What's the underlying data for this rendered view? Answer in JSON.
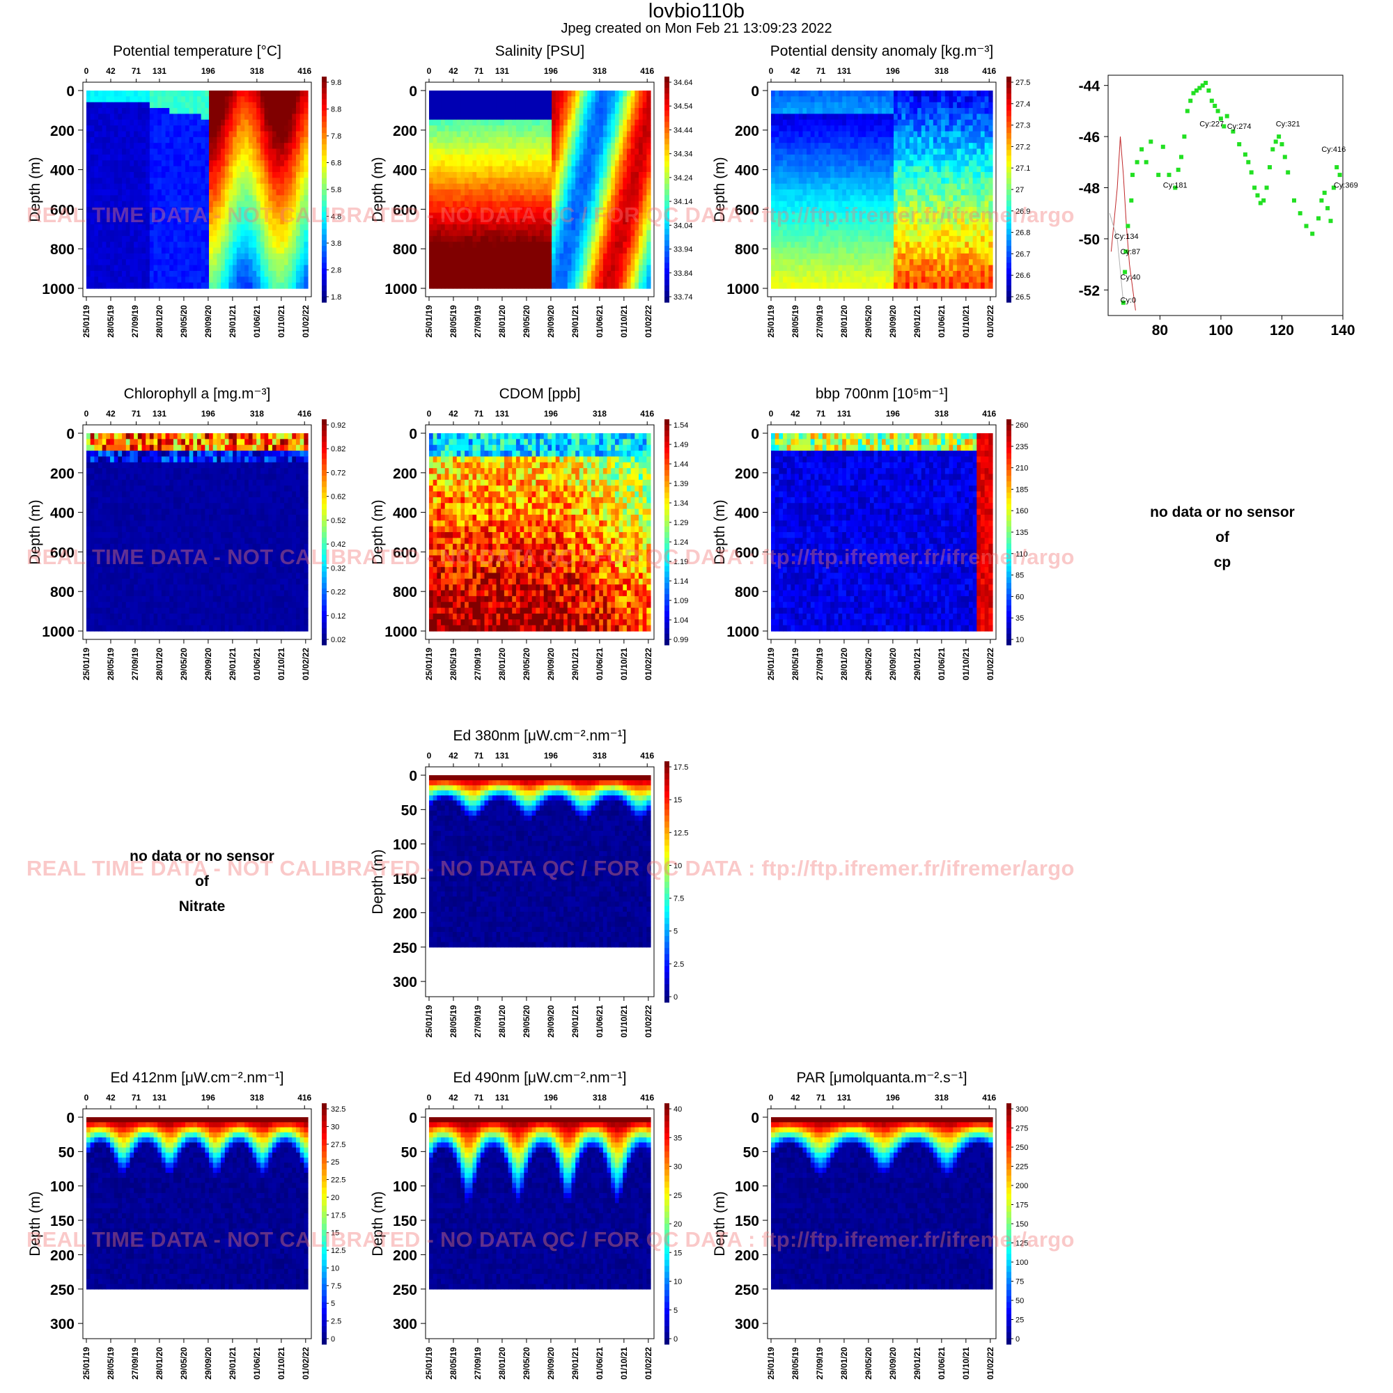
{
  "page": {
    "title": "lovbio110b",
    "subtitle": "Jpeg created on  Mon Feb 21 13:09:23 2022",
    "watermark": "REAL TIME DATA - NOT CALIBRATED - NO DATA QC  /  FOR QC DATA : ftp://ftp.ifremer.fr/ifremer/argo"
  },
  "nodata_labels": {
    "nitrate": [
      "no data or no sensor",
      "of",
      "Nitrate"
    ],
    "cp": [
      "no data or no sensor",
      "of",
      "cp"
    ]
  },
  "chart_data": [
    {
      "type": "heatmap",
      "id": "temp",
      "title": "Potential temperature [°C]",
      "ylabel": "Depth (m)",
      "ylim": [
        1000,
        0
      ],
      "yticks": [
        0,
        200,
        400,
        600,
        800,
        1000
      ],
      "cycle_ticks": [
        "0",
        "42",
        "71",
        "131",
        "196",
        "318",
        "416"
      ],
      "date_ticks": [
        "25/01/19",
        "28/05/19",
        "27/09/19",
        "28/01/20",
        "29/05/20",
        "29/09/20",
        "29/01/21",
        "01/06/21",
        "01/10/21",
        "01/02/22"
      ],
      "colorbar": {
        "min": 1.8,
        "max": 9.8,
        "ticks": [
          "9.8",
          "8.8",
          "7.8",
          "6.8",
          "5.8",
          "4.8",
          "3.8",
          "2.8",
          "1.8"
        ]
      }
    },
    {
      "type": "heatmap",
      "id": "psal",
      "title": "Salinity [PSU]",
      "ylabel": "Depth (m)",
      "ylim": [
        1000,
        0
      ],
      "yticks": [
        0,
        200,
        400,
        600,
        800,
        1000
      ],
      "cycle_ticks": [
        "0",
        "42",
        "71",
        "131",
        "196",
        "318",
        "416"
      ],
      "date_ticks": [
        "25/01/19",
        "28/05/19",
        "27/09/19",
        "28/01/20",
        "29/05/20",
        "29/09/20",
        "29/01/21",
        "01/06/21",
        "01/10/21",
        "01/02/22"
      ],
      "colorbar": {
        "min": 33.74,
        "max": 34.64,
        "ticks": [
          "34.64",
          "34.54",
          "34.44",
          "34.34",
          "34.24",
          "34.14",
          "34.04",
          "33.94",
          "33.84",
          "33.74"
        ]
      }
    },
    {
      "type": "heatmap",
      "id": "sigma",
      "title": "Potential density anomaly [kg.m⁻³]",
      "ylabel": "Depth (m)",
      "ylim": [
        1000,
        0
      ],
      "yticks": [
        0,
        200,
        400,
        600,
        800,
        1000
      ],
      "cycle_ticks": [
        "0",
        "42",
        "71",
        "131",
        "196",
        "318",
        "416"
      ],
      "date_ticks": [
        "25/01/19",
        "28/05/19",
        "27/09/19",
        "28/01/20",
        "29/05/20",
        "29/09/20",
        "29/01/21",
        "01/06/21",
        "01/10/21",
        "01/02/22"
      ],
      "colorbar": {
        "min": 26.5,
        "max": 27.5,
        "ticks": [
          "27.5",
          "27.4",
          "27.3",
          "27.2",
          "27.1",
          "27",
          "26.9",
          "26.8",
          "26.7",
          "26.6",
          "26.5"
        ]
      }
    },
    {
      "type": "heatmap",
      "id": "chla",
      "title": "Chlorophyll a [mg.m⁻³]",
      "ylabel": "Depth (m)",
      "ylim": [
        1000,
        0
      ],
      "yticks": [
        0,
        200,
        400,
        600,
        800,
        1000
      ],
      "cycle_ticks": [
        "0",
        "42",
        "71",
        "131",
        "196",
        "318",
        "416"
      ],
      "date_ticks": [
        "25/01/19",
        "28/05/19",
        "27/09/19",
        "28/01/20",
        "29/05/20",
        "29/09/20",
        "29/01/21",
        "01/06/21",
        "01/10/21",
        "01/02/22"
      ],
      "colorbar": {
        "min": 0.02,
        "max": 0.92,
        "ticks": [
          "0.92",
          "0.82",
          "0.72",
          "0.62",
          "0.52",
          "0.42",
          "0.32",
          "0.22",
          "0.12",
          "0.02"
        ]
      }
    },
    {
      "type": "heatmap",
      "id": "cdom",
      "title": "CDOM  [ppb]",
      "ylabel": "Depth (m)",
      "ylim": [
        1000,
        0
      ],
      "yticks": [
        0,
        200,
        400,
        600,
        800,
        1000
      ],
      "cycle_ticks": [
        "0",
        "42",
        "71",
        "131",
        "196",
        "318",
        "416"
      ],
      "date_ticks": [
        "25/01/19",
        "28/05/19",
        "27/09/19",
        "28/01/20",
        "29/05/20",
        "29/09/20",
        "29/01/21",
        "01/06/21",
        "01/10/21",
        "01/02/22"
      ],
      "colorbar": {
        "min": 0.99,
        "max": 1.54,
        "ticks": [
          "1.54",
          "1.49",
          "1.44",
          "1.39",
          "1.34",
          "1.29",
          "1.24",
          "1.19",
          "1.14",
          "1.09",
          "1.04",
          "0.99"
        ]
      }
    },
    {
      "type": "heatmap",
      "id": "bbp",
      "title": "bbp 700nm [10⁵m⁻¹]",
      "ylabel": "Depth (m)",
      "ylim": [
        1000,
        0
      ],
      "yticks": [
        0,
        200,
        400,
        600,
        800,
        1000
      ],
      "cycle_ticks": [
        "0",
        "42",
        "71",
        "131",
        "196",
        "318",
        "416"
      ],
      "date_ticks": [
        "25/01/19",
        "28/05/19",
        "27/09/19",
        "28/01/20",
        "29/05/20",
        "29/09/20",
        "29/01/21",
        "01/06/21",
        "01/10/21",
        "01/02/22"
      ],
      "colorbar": {
        "min": 10,
        "max": 260,
        "ticks": [
          "260",
          "235",
          "210",
          "185",
          "160",
          "135",
          "110",
          "85",
          "60",
          "35",
          "10"
        ]
      }
    },
    {
      "type": "heatmap",
      "id": "ed380",
      "title": "Ed 380nm [μW.cm⁻².nm⁻¹]",
      "ylabel": "Depth (m)",
      "ylim": [
        310,
        0
      ],
      "yticks": [
        0,
        50,
        100,
        150,
        200,
        250,
        300
      ],
      "cycle_ticks": [
        "0",
        "42",
        "71",
        "131",
        "196",
        "318",
        "416"
      ],
      "date_ticks": [
        "25/01/19",
        "28/05/19",
        "27/09/19",
        "28/01/20",
        "29/05/20",
        "29/09/20",
        "29/01/21",
        "01/06/21",
        "01/10/21",
        "01/02/22"
      ],
      "colorbar": {
        "min": 0,
        "max": 17.5,
        "ticks": [
          "17.5",
          "15",
          "12.5",
          "10",
          "7.5",
          "5",
          "2.5",
          "0"
        ]
      }
    },
    {
      "type": "heatmap",
      "id": "ed412",
      "title": "Ed 412nm [μW.cm⁻².nm⁻¹]",
      "ylabel": "Depth (m)",
      "ylim": [
        310,
        0
      ],
      "yticks": [
        0,
        50,
        100,
        150,
        200,
        250,
        300
      ],
      "cycle_ticks": [
        "0",
        "42",
        "71",
        "131",
        "196",
        "318",
        "416"
      ],
      "date_ticks": [
        "25/01/19",
        "28/05/19",
        "27/09/19",
        "28/01/20",
        "29/05/20",
        "29/09/20",
        "29/01/21",
        "01/06/21",
        "01/10/21",
        "01/02/22"
      ],
      "colorbar": {
        "min": 0,
        "max": 32.5,
        "ticks": [
          "32.5",
          "30",
          "27.5",
          "25",
          "22.5",
          "20",
          "17.5",
          "15",
          "12.5",
          "10",
          "7.5",
          "5",
          "2.5",
          "0"
        ]
      }
    },
    {
      "type": "heatmap",
      "id": "ed490",
      "title": "Ed 490nm [μW.cm⁻².nm⁻¹]",
      "ylabel": "Depth (m)",
      "ylim": [
        310,
        0
      ],
      "yticks": [
        0,
        50,
        100,
        150,
        200,
        250,
        300
      ],
      "cycle_ticks": [
        "0",
        "42",
        "71",
        "131",
        "196",
        "318",
        "416"
      ],
      "date_ticks": [
        "25/01/19",
        "28/05/19",
        "27/09/19",
        "28/01/20",
        "29/05/20",
        "29/09/20",
        "29/01/21",
        "01/06/21",
        "01/10/21",
        "01/02/22"
      ],
      "colorbar": {
        "min": 0,
        "max": 40,
        "ticks": [
          "40",
          "35",
          "30",
          "25",
          "20",
          "15",
          "10",
          "5",
          "0"
        ]
      }
    },
    {
      "type": "heatmap",
      "id": "par",
      "title": "PAR [μmolquanta.m⁻².s⁻¹]",
      "ylabel": "Depth (m)",
      "ylim": [
        310,
        0
      ],
      "yticks": [
        0,
        50,
        100,
        150,
        200,
        250,
        300
      ],
      "cycle_ticks": [
        "0",
        "42",
        "71",
        "131",
        "196",
        "318",
        "416"
      ],
      "date_ticks": [
        "25/01/19",
        "28/05/19",
        "27/09/19",
        "28/01/20",
        "29/05/20",
        "29/09/20",
        "29/01/21",
        "01/06/21",
        "01/10/21",
        "01/02/22"
      ],
      "colorbar": {
        "min": 0,
        "max": 300,
        "ticks": [
          "300",
          "275",
          "250",
          "225",
          "200",
          "175",
          "150",
          "125",
          "100",
          "75",
          "50",
          "25",
          "0"
        ]
      }
    },
    {
      "type": "scatter",
      "id": "map",
      "title": "",
      "xlim": [
        63,
        140
      ],
      "ylim": [
        -53,
        -43.6
      ],
      "xticks": [
        80,
        100,
        120,
        140
      ],
      "yticks": [
        -44,
        -46,
        -48,
        -50,
        -52
      ],
      "series": [
        {
          "color": "#22e022",
          "x": [
            68,
            68.5,
            68.8,
            69.5,
            70.6,
            71,
            72.5,
            74,
            75.5,
            77,
            79.5,
            81,
            83,
            85,
            86,
            87,
            88,
            89,
            90,
            91,
            92,
            93,
            94,
            95,
            96,
            97,
            98,
            99,
            100,
            101,
            102,
            104,
            106,
            108,
            109,
            110,
            111,
            112,
            113,
            114,
            115,
            116,
            117,
            118,
            119,
            120,
            121,
            122,
            124,
            126,
            128,
            130,
            132,
            133,
            134,
            135,
            136,
            137,
            138,
            139
          ],
          "y": [
            -52.5,
            -51.3,
            -50.5,
            -49.5,
            -48.5,
            -47.5,
            -47,
            -46.5,
            -47,
            -46.2,
            -47.5,
            -46.4,
            -47.5,
            -48,
            -47.3,
            -46.8,
            -46,
            -45,
            -44.6,
            -44.3,
            -44.2,
            -44.1,
            -44,
            -43.9,
            -44.2,
            -44.6,
            -44.8,
            -45,
            -45.3,
            -45.6,
            -45.2,
            -45.8,
            -46.3,
            -46.7,
            -47,
            -47.4,
            -48,
            -48.3,
            -48.6,
            -48.5,
            -48,
            -47.2,
            -46.5,
            -46.2,
            -46,
            -46.3,
            -46.8,
            -47.4,
            -48.5,
            -49,
            -49.5,
            -49.8,
            -49.2,
            -48.5,
            -48.2,
            -48.8,
            -49.3,
            -48,
            -47.2,
            -47.5
          ]
        }
      ],
      "labels": [
        {
          "text": "Cy:227",
          "x": 93,
          "y": -45.6
        },
        {
          "text": "Cy:274",
          "x": 102,
          "y": -45.7
        },
        {
          "text": "Cy:321",
          "x": 118,
          "y": -45.6
        },
        {
          "text": "Cy:416",
          "x": 133,
          "y": -46.6
        },
        {
          "text": "Cy:369",
          "x": 137,
          "y": -48
        },
        {
          "text": "Cy:181",
          "x": 81,
          "y": -48
        },
        {
          "text": "Cy:134",
          "x": 65,
          "y": -50
        },
        {
          "text": "Cy:87",
          "x": 67,
          "y": -50.6
        },
        {
          "text": "Cy:40",
          "x": 67,
          "y": -51.6
        },
        {
          "text": "Cy:0",
          "x": 67,
          "y": -52.5
        }
      ]
    }
  ]
}
